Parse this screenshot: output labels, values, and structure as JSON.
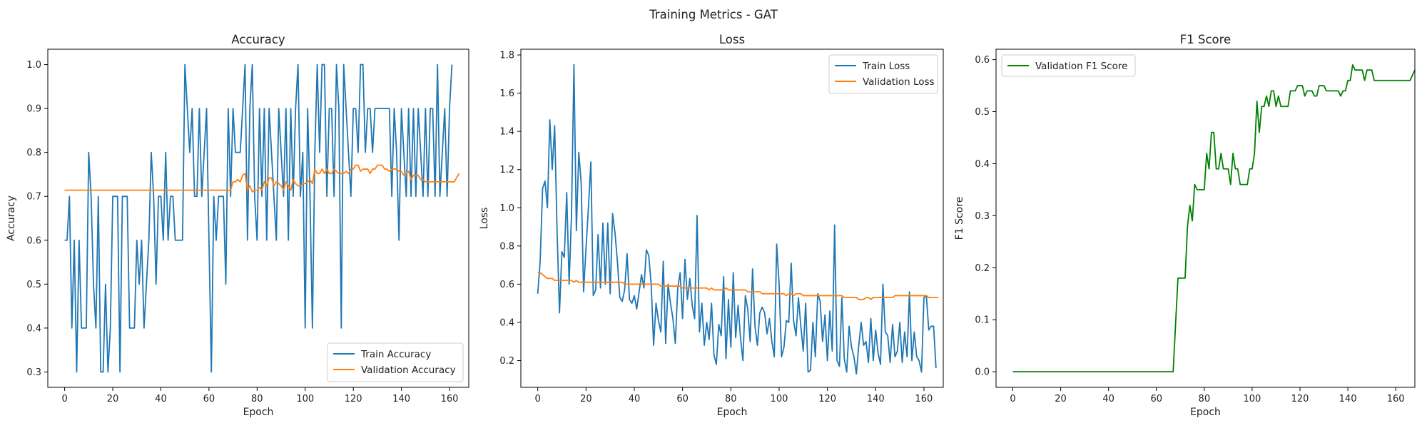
{
  "figure": {
    "suptitle": "Training Metrics - GAT"
  },
  "chart_data": [
    {
      "type": "line",
      "title": "Accuracy",
      "xlabel": "Epoch",
      "ylabel": "Accuracy",
      "xlim": [
        -7,
        168
      ],
      "ylim": [
        0.265,
        1.035
      ],
      "xticks": [
        0,
        20,
        40,
        60,
        80,
        100,
        120,
        140,
        160
      ],
      "yticks": [
        0.3,
        0.4,
        0.5,
        0.6,
        0.7,
        0.8,
        0.9,
        1.0
      ],
      "ytick_labels": [
        "0.3",
        "0.4",
        "0.5",
        "0.6",
        "0.7",
        "0.8",
        "0.9",
        "1.0"
      ],
      "legend_position": "lower right",
      "series": [
        {
          "name": "Train Accuracy",
          "color": "#1f77b4",
          "values": [
            0.6,
            0.6,
            0.7,
            0.4,
            0.6,
            0.3,
            0.6,
            0.4,
            0.4,
            0.4,
            0.8,
            0.7,
            0.5,
            0.4,
            0.7,
            0.3,
            0.3,
            0.5,
            0.3,
            0.4,
            0.7,
            0.7,
            0.7,
            0.3,
            0.7,
            0.7,
            0.7,
            0.4,
            0.4,
            0.4,
            0.6,
            0.5,
            0.6,
            0.4,
            0.5,
            0.6,
            0.8,
            0.7,
            0.5,
            0.7,
            0.7,
            0.6,
            0.8,
            0.6,
            0.7,
            0.7,
            0.6,
            0.6,
            0.6,
            0.6,
            1.0,
            0.9,
            0.8,
            0.9,
            0.7,
            0.7,
            0.9,
            0.7,
            0.8,
            0.9,
            0.6,
            0.3,
            0.7,
            0.6,
            0.7,
            0.7,
            0.7,
            0.5,
            0.9,
            0.7,
            0.9,
            0.8,
            0.8,
            0.8,
            0.9,
            1.0,
            0.6,
            0.9,
            1.0,
            0.7,
            0.6,
            0.9,
            0.7,
            0.9,
            0.6,
            0.9,
            0.8,
            0.7,
            0.6,
            0.9,
            0.8,
            0.7,
            0.9,
            0.6,
            0.9,
            0.7,
            0.9,
            1.0,
            0.7,
            0.8,
            0.4,
            0.9,
            0.7,
            0.4,
            0.8,
            1.0,
            0.8,
            1.0,
            1.0,
            0.7,
            0.9,
            0.9,
            0.7,
            1.0,
            0.9,
            0.4,
            1.0,
            0.9,
            0.8,
            0.7,
            0.9,
            0.9,
            0.8,
            1.0,
            1.0,
            0.8,
            0.9,
            0.9,
            0.8,
            0.9,
            0.9,
            0.9,
            0.9,
            0.9,
            0.9,
            0.9,
            0.7,
            0.9,
            0.8,
            0.6,
            0.9,
            0.8,
            0.7,
            0.9,
            0.7,
            0.9,
            0.7,
            0.9,
            0.8,
            0.7,
            0.9,
            0.7,
            0.9,
            0.9,
            0.7,
            1.0,
            0.7,
            0.8,
            0.9,
            0.7,
            0.9,
            1.0
          ]
        },
        {
          "name": "Validation Accuracy",
          "color": "#ff7f0e",
          "values": [
            0.714,
            0.714,
            0.714,
            0.714,
            0.714,
            0.714,
            0.714,
            0.714,
            0.714,
            0.714,
            0.714,
            0.714,
            0.714,
            0.714,
            0.714,
            0.714,
            0.714,
            0.714,
            0.714,
            0.714,
            0.714,
            0.714,
            0.714,
            0.714,
            0.714,
            0.714,
            0.714,
            0.714,
            0.714,
            0.714,
            0.714,
            0.714,
            0.714,
            0.714,
            0.714,
            0.714,
            0.714,
            0.714,
            0.714,
            0.714,
            0.714,
            0.714,
            0.714,
            0.714,
            0.714,
            0.714,
            0.714,
            0.714,
            0.714,
            0.714,
            0.714,
            0.714,
            0.714,
            0.714,
            0.714,
            0.714,
            0.714,
            0.714,
            0.714,
            0.714,
            0.714,
            0.714,
            0.714,
            0.714,
            0.714,
            0.714,
            0.714,
            0.714,
            0.714,
            0.714,
            0.733,
            0.733,
            0.738,
            0.733,
            0.748,
            0.752,
            0.714,
            0.724,
            0.71,
            0.714,
            0.714,
            0.72,
            0.714,
            0.733,
            0.724,
            0.742,
            0.742,
            0.724,
            0.733,
            0.729,
            0.724,
            0.714,
            0.733,
            0.724,
            0.714,
            0.738,
            0.729,
            0.724,
            0.724,
            0.729,
            0.729,
            0.733,
            0.738,
            0.729,
            0.762,
            0.752,
            0.752,
            0.762,
            0.752,
            0.762,
            0.752,
            0.752,
            0.762,
            0.757,
            0.752,
            0.752,
            0.752,
            0.757,
            0.752,
            0.762,
            0.762,
            0.771,
            0.771,
            0.757,
            0.762,
            0.762,
            0.762,
            0.752,
            0.762,
            0.762,
            0.771,
            0.771,
            0.771,
            0.762,
            0.762,
            0.757,
            0.762,
            0.762,
            0.762,
            0.757,
            0.757,
            0.748,
            0.752,
            0.757,
            0.738,
            0.748,
            0.748,
            0.748,
            0.738,
            0.738,
            0.733,
            0.733,
            0.733,
            0.733,
            0.733,
            0.733,
            0.733,
            0.733,
            0.733,
            0.733,
            0.733,
            0.733,
            0.733,
            0.743,
            0.752
          ]
        }
      ]
    },
    {
      "type": "line",
      "title": "Loss",
      "xlabel": "Epoch",
      "ylabel": "Loss",
      "xlim": [
        -7,
        168
      ],
      "ylim": [
        0.06,
        1.83
      ],
      "xticks": [
        0,
        20,
        40,
        60,
        80,
        100,
        120,
        140,
        160
      ],
      "yticks": [
        0.2,
        0.4,
        0.6,
        0.8,
        1.0,
        1.2,
        1.4,
        1.6,
        1.8
      ],
      "ytick_labels": [
        "0.2",
        "0.4",
        "0.6",
        "0.8",
        "1.0",
        "1.2",
        "1.4",
        "1.6",
        "1.8"
      ],
      "legend_position": "upper right",
      "series": [
        {
          "name": "Train Loss",
          "color": "#1f77b4",
          "values": [
            0.55,
            0.72,
            1.1,
            1.14,
            1.0,
            1.46,
            1.2,
            1.43,
            0.88,
            0.45,
            0.77,
            0.74,
            1.08,
            0.6,
            0.97,
            1.75,
            0.88,
            1.29,
            1.13,
            0.56,
            0.79,
            1.0,
            1.24,
            0.54,
            0.57,
            0.86,
            0.58,
            0.92,
            0.6,
            0.92,
            0.55,
            0.97,
            0.87,
            0.72,
            0.53,
            0.51,
            0.57,
            0.76,
            0.52,
            0.5,
            0.54,
            0.47,
            0.56,
            0.65,
            0.58,
            0.78,
            0.75,
            0.6,
            0.28,
            0.5,
            0.41,
            0.35,
            0.72,
            0.29,
            0.6,
            0.5,
            0.42,
            0.29,
            0.58,
            0.66,
            0.42,
            0.73,
            0.52,
            0.63,
            0.49,
            0.42,
            0.96,
            0.35,
            0.5,
            0.28,
            0.4,
            0.31,
            0.5,
            0.23,
            0.18,
            0.39,
            0.33,
            0.64,
            0.21,
            0.52,
            0.27,
            0.66,
            0.32,
            0.49,
            0.32,
            0.2,
            0.54,
            0.47,
            0.3,
            0.68,
            0.38,
            0.28,
            0.45,
            0.48,
            0.45,
            0.34,
            0.42,
            0.3,
            0.22,
            0.81,
            0.6,
            0.22,
            0.27,
            0.41,
            0.4,
            0.71,
            0.41,
            0.33,
            0.53,
            0.38,
            0.25,
            0.5,
            0.14,
            0.15,
            0.4,
            0.22,
            0.55,
            0.51,
            0.3,
            0.44,
            0.2,
            0.46,
            0.25,
            0.91,
            0.2,
            0.17,
            0.53,
            0.21,
            0.14,
            0.38,
            0.27,
            0.22,
            0.13,
            0.28,
            0.4,
            0.28,
            0.3,
            0.19,
            0.42,
            0.2,
            0.36,
            0.24,
            0.18,
            0.6,
            0.35,
            0.33,
            0.19,
            0.39,
            0.22,
            0.25,
            0.4,
            0.19,
            0.35,
            0.22,
            0.56,
            0.2,
            0.35,
            0.22,
            0.2,
            0.14,
            0.53,
            0.54,
            0.36,
            0.38,
            0.38,
            0.16
          ]
        },
        {
          "name": "Validation Loss",
          "color": "#ff7f0e",
          "values": [
            0.66,
            0.66,
            0.65,
            0.64,
            0.63,
            0.63,
            0.63,
            0.62,
            0.62,
            0.62,
            0.62,
            0.62,
            0.62,
            0.62,
            0.62,
            0.61,
            0.62,
            0.61,
            0.61,
            0.61,
            0.61,
            0.61,
            0.61,
            0.61,
            0.61,
            0.61,
            0.61,
            0.61,
            0.61,
            0.61,
            0.61,
            0.61,
            0.61,
            0.61,
            0.61,
            0.61,
            0.6,
            0.6,
            0.6,
            0.6,
            0.6,
            0.6,
            0.6,
            0.6,
            0.6,
            0.6,
            0.6,
            0.6,
            0.6,
            0.6,
            0.6,
            0.59,
            0.59,
            0.59,
            0.59,
            0.59,
            0.59,
            0.59,
            0.59,
            0.59,
            0.58,
            0.58,
            0.58,
            0.58,
            0.58,
            0.58,
            0.58,
            0.58,
            0.58,
            0.58,
            0.58,
            0.57,
            0.58,
            0.57,
            0.57,
            0.57,
            0.57,
            0.57,
            0.58,
            0.57,
            0.57,
            0.57,
            0.57,
            0.57,
            0.57,
            0.57,
            0.57,
            0.56,
            0.56,
            0.56,
            0.56,
            0.56,
            0.56,
            0.55,
            0.55,
            0.55,
            0.55,
            0.55,
            0.55,
            0.55,
            0.55,
            0.55,
            0.55,
            0.54,
            0.55,
            0.55,
            0.54,
            0.55,
            0.55,
            0.55,
            0.54,
            0.54,
            0.54,
            0.54,
            0.54,
            0.54,
            0.54,
            0.54,
            0.54,
            0.54,
            0.54,
            0.54,
            0.54,
            0.54,
            0.54,
            0.54,
            0.54,
            0.53,
            0.53,
            0.53,
            0.53,
            0.53,
            0.53,
            0.52,
            0.52,
            0.52,
            0.53,
            0.53,
            0.52,
            0.53,
            0.53,
            0.53,
            0.53,
            0.53,
            0.53,
            0.53,
            0.53,
            0.53,
            0.54,
            0.54,
            0.54,
            0.54,
            0.54,
            0.54,
            0.54,
            0.54,
            0.54,
            0.54,
            0.54,
            0.54,
            0.54,
            0.54,
            0.53,
            0.53,
            0.53,
            0.53,
            0.53
          ]
        }
      ]
    },
    {
      "type": "line",
      "title": "F1 Score",
      "xlabel": "Epoch",
      "ylabel": "F1 Score",
      "xlim": [
        -7,
        168
      ],
      "ylim": [
        -0.03,
        0.62
      ],
      "xticks": [
        0,
        20,
        40,
        60,
        80,
        100,
        120,
        140,
        160
      ],
      "yticks": [
        0.0,
        0.1,
        0.2,
        0.3,
        0.4,
        0.5,
        0.6
      ],
      "ytick_labels": [
        "0.0",
        "0.1",
        "0.2",
        "0.3",
        "0.4",
        "0.5",
        "0.6"
      ],
      "legend_position": "upper left",
      "series": [
        {
          "name": "Validation F1 Score",
          "color": "#008000",
          "values": [
            0,
            0,
            0,
            0,
            0,
            0,
            0,
            0,
            0,
            0,
            0,
            0,
            0,
            0,
            0,
            0,
            0,
            0,
            0,
            0,
            0,
            0,
            0,
            0,
            0,
            0,
            0,
            0,
            0,
            0,
            0,
            0,
            0,
            0,
            0,
            0,
            0,
            0,
            0,
            0,
            0,
            0,
            0,
            0,
            0,
            0,
            0,
            0,
            0,
            0,
            0,
            0,
            0,
            0,
            0,
            0,
            0,
            0,
            0,
            0,
            0,
            0,
            0,
            0,
            0,
            0,
            0,
            0,
            0.09,
            0.18,
            0.18,
            0.18,
            0.18,
            0.28,
            0.32,
            0.29,
            0.36,
            0.35,
            0.35,
            0.35,
            0.35,
            0.42,
            0.39,
            0.46,
            0.46,
            0.39,
            0.39,
            0.42,
            0.39,
            0.39,
            0.39,
            0.36,
            0.42,
            0.39,
            0.39,
            0.36,
            0.36,
            0.36,
            0.36,
            0.39,
            0.39,
            0.42,
            0.52,
            0.46,
            0.51,
            0.51,
            0.53,
            0.51,
            0.54,
            0.54,
            0.51,
            0.53,
            0.51,
            0.51,
            0.51,
            0.51,
            0.54,
            0.54,
            0.54,
            0.55,
            0.55,
            0.55,
            0.53,
            0.54,
            0.54,
            0.54,
            0.53,
            0.53,
            0.55,
            0.55,
            0.55,
            0.54,
            0.54,
            0.54,
            0.54,
            0.54,
            0.54,
            0.53,
            0.54,
            0.54,
            0.56,
            0.56,
            0.59,
            0.58,
            0.58,
            0.58,
            0.58,
            0.56,
            0.58,
            0.58,
            0.58,
            0.56,
            0.56,
            0.56,
            0.56,
            0.56,
            0.56,
            0.56,
            0.56,
            0.56,
            0.56,
            0.56,
            0.56,
            0.56,
            0.56,
            0.56,
            0.56,
            0.57,
            0.58
          ]
        }
      ]
    }
  ]
}
